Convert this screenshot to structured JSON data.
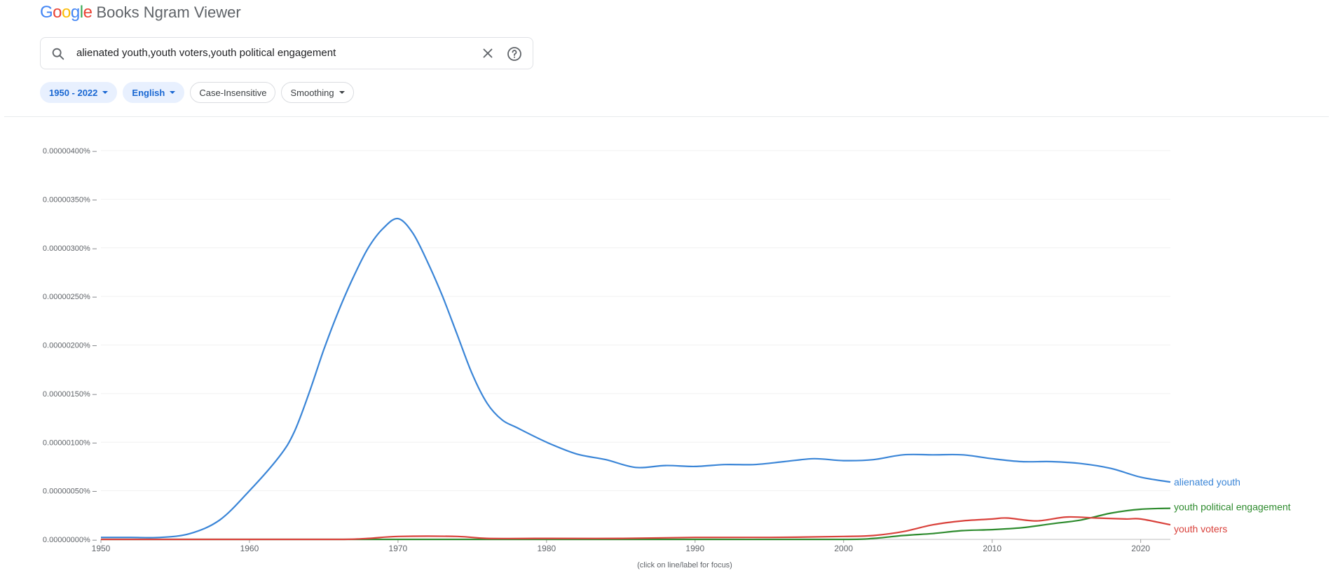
{
  "header": {
    "logo_letters": [
      {
        "char": "G",
        "color": "#4285F4"
      },
      {
        "char": "o",
        "color": "#EA4335"
      },
      {
        "char": "o",
        "color": "#FBBC05"
      },
      {
        "char": "g",
        "color": "#4285F4"
      },
      {
        "char": "l",
        "color": "#34A853"
      },
      {
        "char": "e",
        "color": "#EA4335"
      }
    ],
    "product_name": "Books Ngram Viewer"
  },
  "search": {
    "value": "alienated youth,youth voters,youth political engagement",
    "icon": "search-icon",
    "clear_icon": "close-icon",
    "help_icon": "help-circle-icon"
  },
  "filters": {
    "year_range": "1950 - 2022",
    "corpus": "English",
    "case": "Case-Insensitive",
    "smoothing": "Smoothing"
  },
  "chart_data": {
    "type": "line",
    "x_ticks": [
      1950,
      1960,
      1970,
      1980,
      1990,
      2000,
      2010,
      2020
    ],
    "y_ticks": [
      "0.00000000%",
      "0.00000050%",
      "0.00000100%",
      "0.00000150%",
      "0.00000200%",
      "0.00000250%",
      "0.00000300%",
      "0.00000350%",
      "0.00000400%"
    ],
    "xlim": [
      1950,
      2022
    ],
    "ylim": [
      0,
      4e-06
    ],
    "y_unit": "%",
    "footnote": "(click on line/label for focus)",
    "series": [
      {
        "name": "alienated youth",
        "color": "#3a85d7",
        "points": [
          [
            1950,
            2e-08
          ],
          [
            1952,
            2e-08
          ],
          [
            1954,
            2e-08
          ],
          [
            1956,
            6e-08
          ],
          [
            1958,
            2e-07
          ],
          [
            1960,
            5e-07
          ],
          [
            1962,
            8.5e-07
          ],
          [
            1963,
            1.1e-06
          ],
          [
            1964,
            1.5e-06
          ],
          [
            1965,
            1.95e-06
          ],
          [
            1966,
            2.35e-06
          ],
          [
            1967,
            2.7e-06
          ],
          [
            1968,
            3e-06
          ],
          [
            1969,
            3.2e-06
          ],
          [
            1970,
            3.3e-06
          ],
          [
            1971,
            3.15e-06
          ],
          [
            1972,
            2.85e-06
          ],
          [
            1973,
            2.5e-06
          ],
          [
            1974,
            2.1e-06
          ],
          [
            1975,
            1.7e-06
          ],
          [
            1976,
            1.4e-06
          ],
          [
            1977,
            1.23e-06
          ],
          [
            1978,
            1.15e-06
          ],
          [
            1980,
            1e-06
          ],
          [
            1982,
            8.8e-07
          ],
          [
            1984,
            8.2e-07
          ],
          [
            1986,
            7.4e-07
          ],
          [
            1988,
            7.6e-07
          ],
          [
            1990,
            7.5e-07
          ],
          [
            1992,
            7.7e-07
          ],
          [
            1994,
            7.7e-07
          ],
          [
            1996,
            8e-07
          ],
          [
            1998,
            8.3e-07
          ],
          [
            2000,
            8.1e-07
          ],
          [
            2002,
            8.2e-07
          ],
          [
            2004,
            8.7e-07
          ],
          [
            2006,
            8.7e-07
          ],
          [
            2008,
            8.7e-07
          ],
          [
            2010,
            8.3e-07
          ],
          [
            2012,
            8e-07
          ],
          [
            2014,
            8e-07
          ],
          [
            2016,
            7.8e-07
          ],
          [
            2018,
            7.3e-07
          ],
          [
            2020,
            6.4e-07
          ],
          [
            2022,
            5.9e-07
          ]
        ]
      },
      {
        "name": "youth political engagement",
        "color": "#2e8b2e",
        "points": [
          [
            1950,
            0.0
          ],
          [
            1960,
            0.0
          ],
          [
            1970,
            0.0
          ],
          [
            1980,
            0.0
          ],
          [
            1990,
            0.0
          ],
          [
            2000,
            0.0
          ],
          [
            2002,
            1e-08
          ],
          [
            2004,
            4e-08
          ],
          [
            2006,
            6e-08
          ],
          [
            2008,
            9e-08
          ],
          [
            2010,
            1e-07
          ],
          [
            2012,
            1.2e-07
          ],
          [
            2014,
            1.6e-07
          ],
          [
            2016,
            2e-07
          ],
          [
            2018,
            2.7e-07
          ],
          [
            2020,
            3.1e-07
          ],
          [
            2022,
            3.2e-07
          ]
        ]
      },
      {
        "name": "youth voters",
        "color": "#d9413b",
        "points": [
          [
            1950,
            0.0
          ],
          [
            1960,
            0.0
          ],
          [
            1966,
            0.0
          ],
          [
            1968,
            1e-08
          ],
          [
            1970,
            3e-08
          ],
          [
            1974,
            3e-08
          ],
          [
            1976,
            1e-08
          ],
          [
            1980,
            1e-08
          ],
          [
            1985,
            1e-08
          ],
          [
            1990,
            2e-08
          ],
          [
            1995,
            2e-08
          ],
          [
            2000,
            3e-08
          ],
          [
            2002,
            4e-08
          ],
          [
            2004,
            8e-08
          ],
          [
            2006,
            1.5e-07
          ],
          [
            2008,
            1.9e-07
          ],
          [
            2010,
            2.1e-07
          ],
          [
            2011,
            2.2e-07
          ],
          [
            2013,
            1.9e-07
          ],
          [
            2015,
            2.3e-07
          ],
          [
            2017,
            2.2e-07
          ],
          [
            2019,
            2.1e-07
          ],
          [
            2020,
            2.1e-07
          ],
          [
            2022,
            1.5e-07
          ]
        ]
      }
    ]
  }
}
